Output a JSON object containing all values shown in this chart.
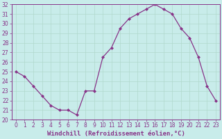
{
  "x": [
    0,
    1,
    2,
    3,
    4,
    5,
    6,
    7,
    8,
    9,
    10,
    11,
    12,
    13,
    14,
    15,
    16,
    17,
    18,
    19,
    20,
    21,
    22,
    23
  ],
  "y": [
    25.0,
    24.5,
    23.5,
    22.5,
    21.5,
    21.0,
    21.0,
    20.5,
    23.0,
    23.0,
    26.5,
    27.5,
    29.5,
    30.5,
    31.0,
    31.5,
    32.0,
    31.5,
    31.0,
    29.5,
    28.5,
    26.5,
    23.5,
    22.0
  ],
  "line_color": "#883388",
  "marker": "D",
  "markersize": 2.0,
  "linewidth": 0.9,
  "xlabel": "Windchill (Refroidissement éolien,°C)",
  "xlabel_fontsize": 6.5,
  "xlabel_color": "#883388",
  "xlim": [
    -0.5,
    23.5
  ],
  "ylim": [
    20,
    32
  ],
  "yticks": [
    20,
    21,
    22,
    23,
    24,
    25,
    26,
    27,
    28,
    29,
    30,
    31,
    32
  ],
  "xticks": [
    0,
    1,
    2,
    3,
    4,
    5,
    6,
    7,
    8,
    9,
    10,
    11,
    12,
    13,
    14,
    15,
    16,
    17,
    18,
    19,
    20,
    21,
    22,
    23
  ],
  "tick_fontsize": 5.5,
  "tick_color": "#883388",
  "grid_color": "#b0d8cc",
  "bg_color": "#c8ecea",
  "fig_bg_color": "#c8ecea",
  "spine_color": "#883388"
}
